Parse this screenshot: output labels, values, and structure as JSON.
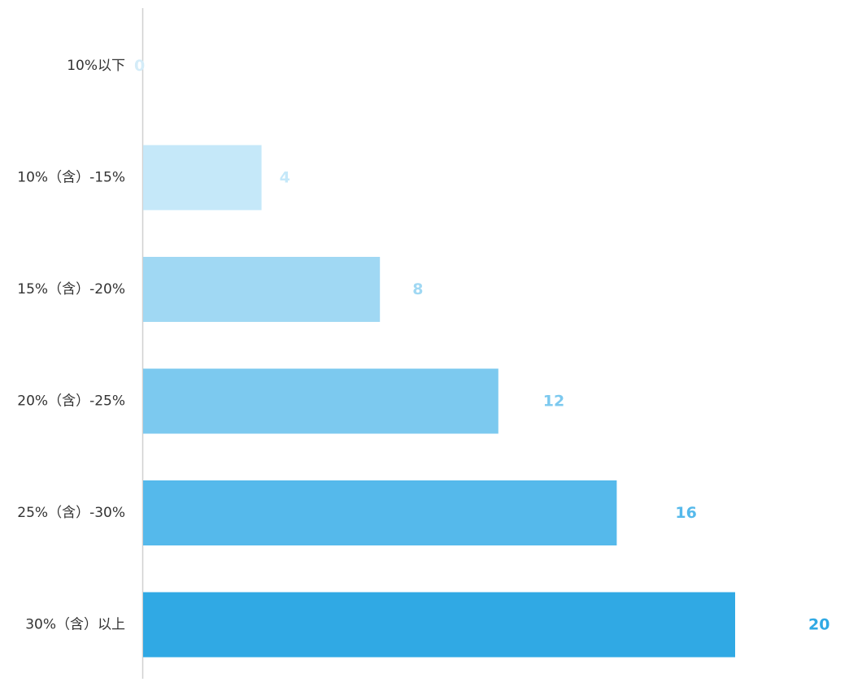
{
  "chart_data": {
    "type": "bar",
    "orientation": "horizontal",
    "categories": [
      "10%以下",
      "10%（含）-15%",
      "15%（含）-20%",
      "20%（含）-25%",
      "25%（含）-30%",
      "30%（含）以上"
    ],
    "values": [
      0,
      4,
      8,
      12,
      16,
      20
    ],
    "value_labels": [
      "0",
      "4",
      "8",
      "12",
      "16",
      "20"
    ],
    "xlim": [
      0,
      20
    ],
    "grid": false,
    "legend": "none",
    "colors": [
      "#e6f4fc",
      "#c5e8f9",
      "#a0d8f3",
      "#7cc9ef",
      "#55b9eb",
      "#30a9e4"
    ],
    "title": "",
    "xlabel": "",
    "ylabel": ""
  }
}
